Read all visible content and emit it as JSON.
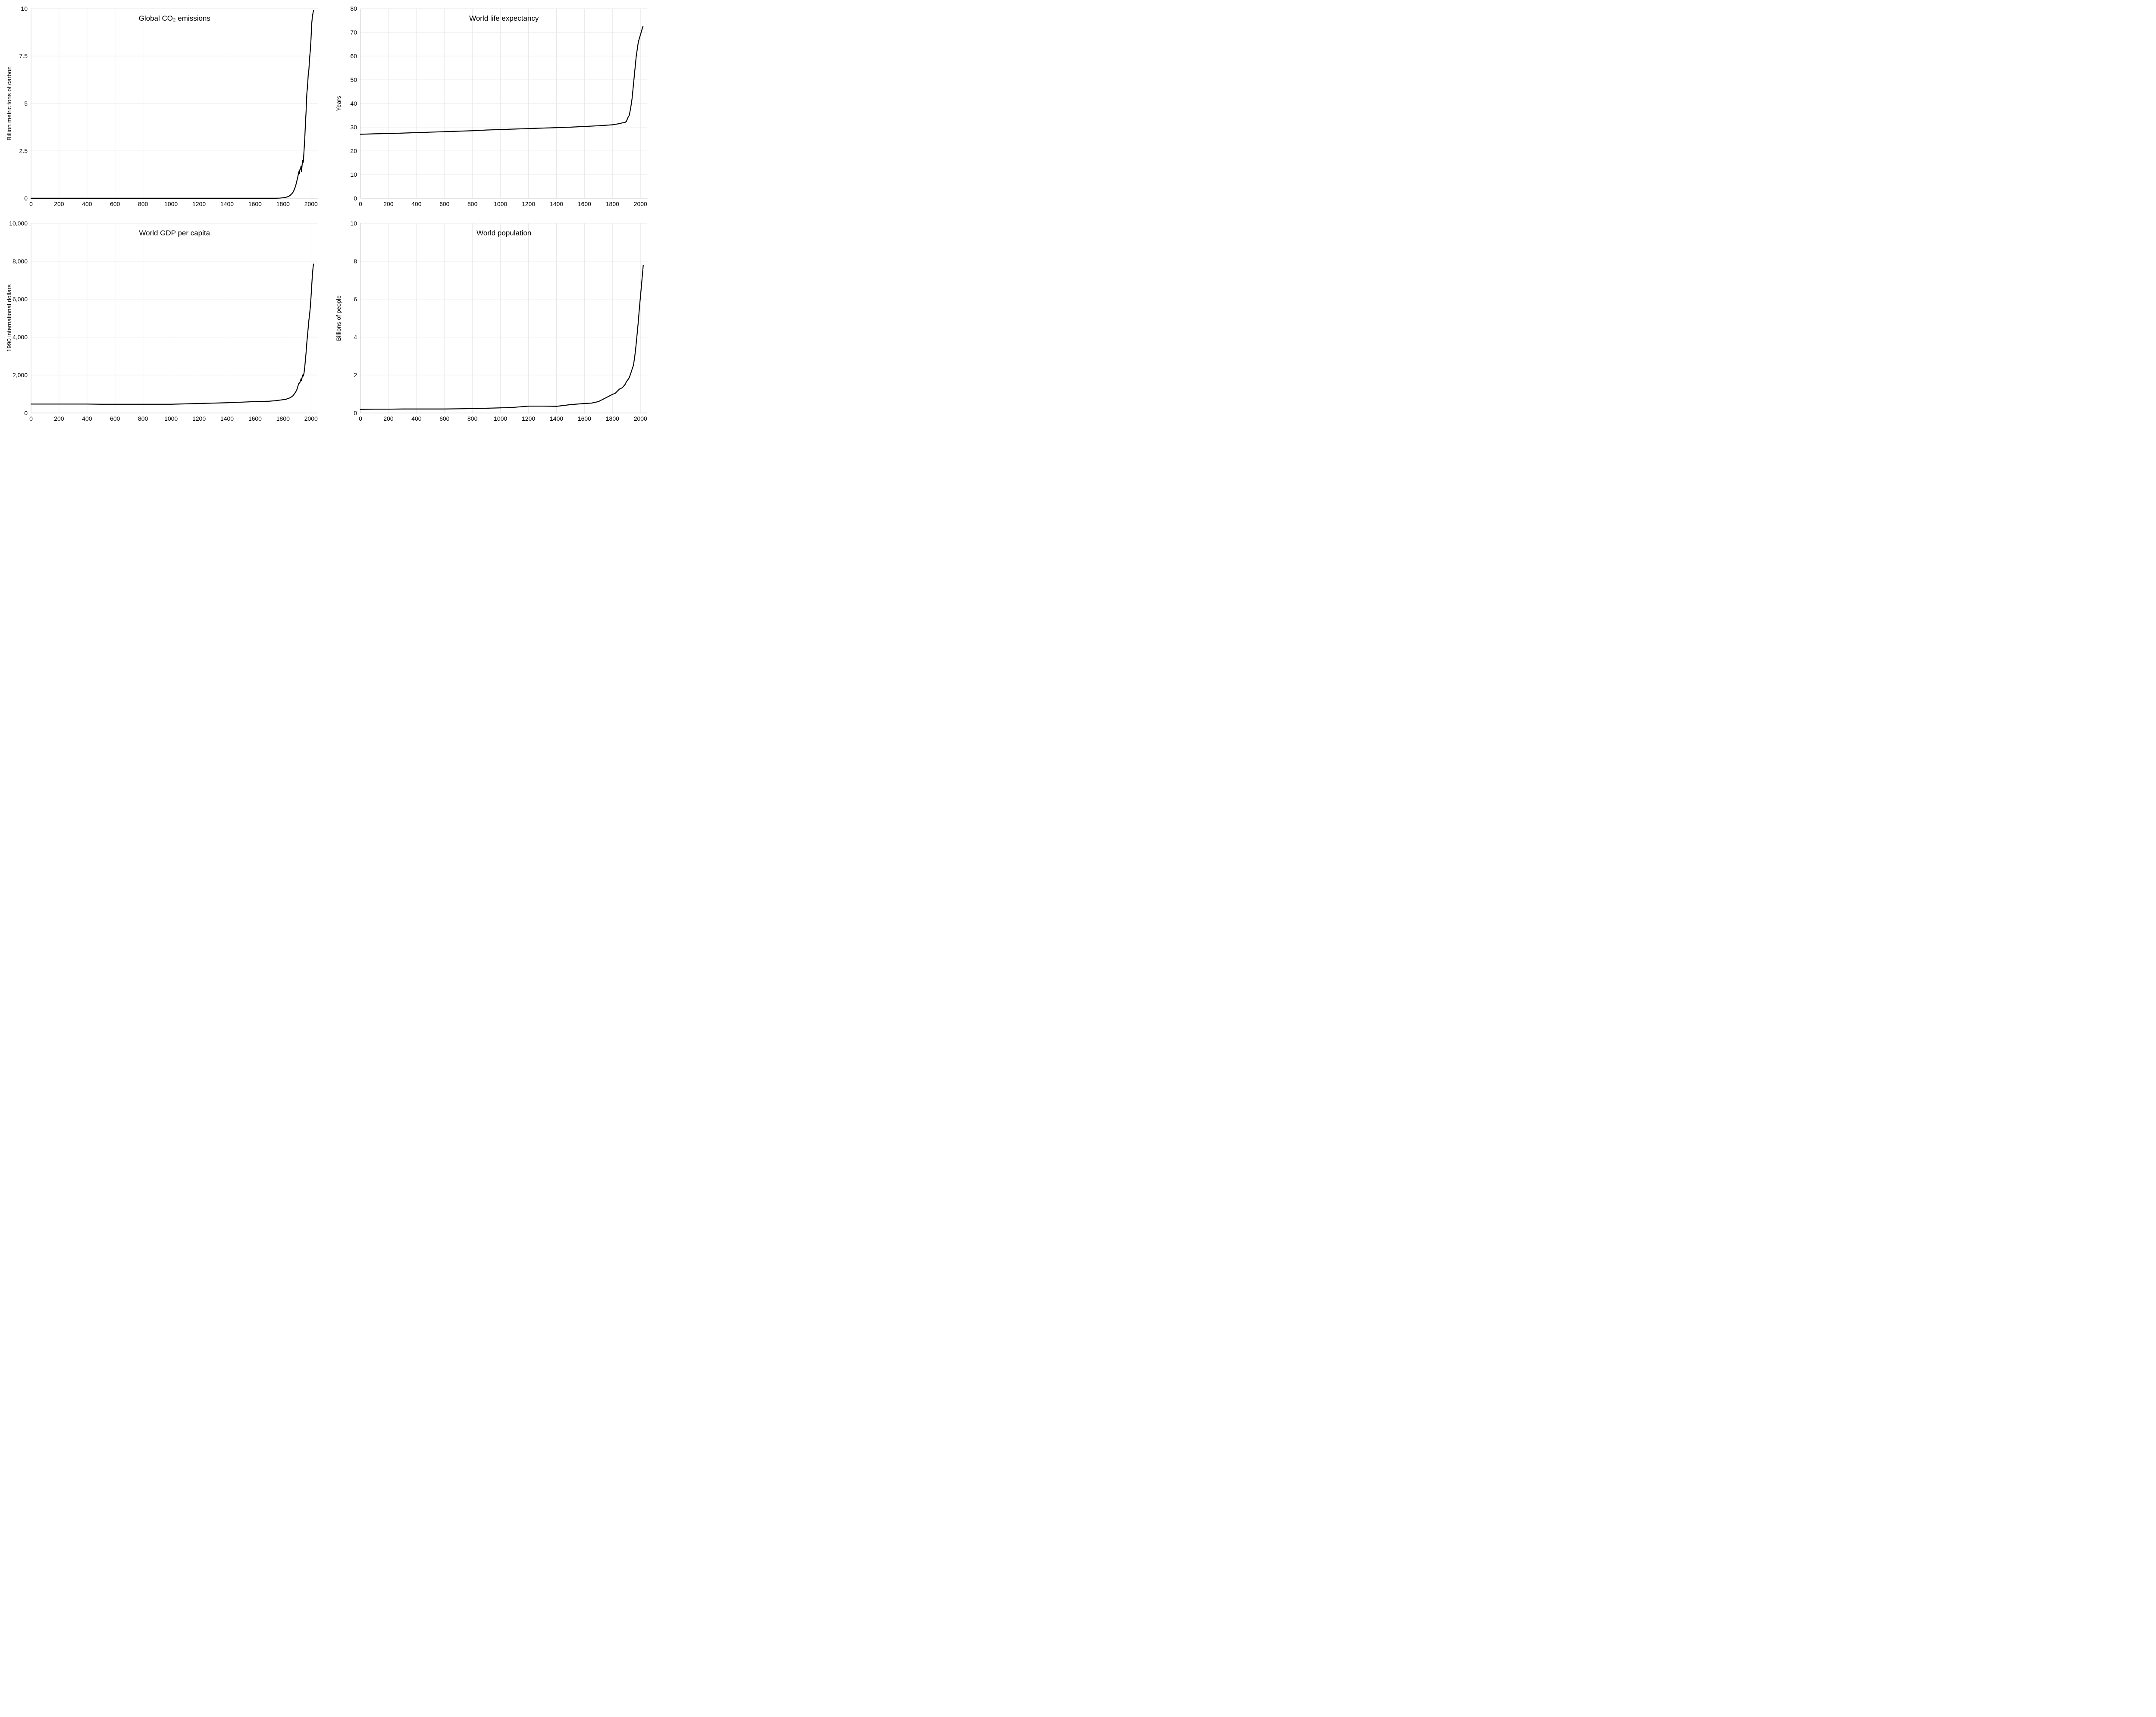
{
  "layout": {
    "rows": 2,
    "cols": 2,
    "background_color": "#ffffff",
    "grid_color": "#e8e8e8",
    "baseline_color": "#c8c8c8",
    "series_color": "#000000",
    "tick_fontsize": 14,
    "axis_label_fontsize": 14,
    "title_fontsize": 17,
    "series_stroke_width": 2.2
  },
  "panels": [
    {
      "id": "co2",
      "type": "line",
      "title": "Global CO₂ emissions",
      "ylabel": "Billion metric tons of carbon",
      "xlim": [
        0,
        2050
      ],
      "ylim": [
        0,
        10
      ],
      "xticks": [
        0,
        200,
        400,
        600,
        800,
        1000,
        1200,
        1400,
        1600,
        1800,
        2000
      ],
      "yticks": [
        0,
        2.5,
        5,
        7.5,
        10
      ],
      "ytick_labels": [
        "0",
        "2.5",
        "5",
        "7.5",
        "10"
      ],
      "series": [
        {
          "x": 0,
          "y": 0.003
        },
        {
          "x": 200,
          "y": 0.003
        },
        {
          "x": 400,
          "y": 0.003
        },
        {
          "x": 600,
          "y": 0.003
        },
        {
          "x": 800,
          "y": 0.003
        },
        {
          "x": 1000,
          "y": 0.003
        },
        {
          "x": 1200,
          "y": 0.003
        },
        {
          "x": 1400,
          "y": 0.003
        },
        {
          "x": 1500,
          "y": 0.003
        },
        {
          "x": 1600,
          "y": 0.003
        },
        {
          "x": 1700,
          "y": 0.003
        },
        {
          "x": 1750,
          "y": 0.003
        },
        {
          "x": 1780,
          "y": 0.01
        },
        {
          "x": 1800,
          "y": 0.03
        },
        {
          "x": 1820,
          "y": 0.05
        },
        {
          "x": 1840,
          "y": 0.1
        },
        {
          "x": 1850,
          "y": 0.15
        },
        {
          "x": 1860,
          "y": 0.22
        },
        {
          "x": 1870,
          "y": 0.3
        },
        {
          "x": 1880,
          "y": 0.45
        },
        {
          "x": 1890,
          "y": 0.65
        },
        {
          "x": 1895,
          "y": 0.8
        },
        {
          "x": 1900,
          "y": 0.95
        },
        {
          "x": 1905,
          "y": 1.1
        },
        {
          "x": 1910,
          "y": 1.3
        },
        {
          "x": 1913,
          "y": 1.4
        },
        {
          "x": 1915,
          "y": 1.3
        },
        {
          "x": 1918,
          "y": 1.35
        },
        {
          "x": 1920,
          "y": 1.5
        },
        {
          "x": 1925,
          "y": 1.55
        },
        {
          "x": 1929,
          "y": 1.7
        },
        {
          "x": 1932,
          "y": 1.4
        },
        {
          "x": 1937,
          "y": 1.8
        },
        {
          "x": 1940,
          "y": 2.0
        },
        {
          "x": 1945,
          "y": 1.9
        },
        {
          "x": 1950,
          "y": 2.5
        },
        {
          "x": 1955,
          "y": 3.1
        },
        {
          "x": 1960,
          "y": 3.9
        },
        {
          "x": 1965,
          "y": 4.6
        },
        {
          "x": 1970,
          "y": 5.5
        },
        {
          "x": 1975,
          "y": 5.9
        },
        {
          "x": 1980,
          "y": 6.5
        },
        {
          "x": 1985,
          "y": 6.8
        },
        {
          "x": 1990,
          "y": 7.4
        },
        {
          "x": 1995,
          "y": 7.8
        },
        {
          "x": 2000,
          "y": 8.4
        },
        {
          "x": 2005,
          "y": 9.2
        },
        {
          "x": 2010,
          "y": 9.6
        },
        {
          "x": 2015,
          "y": 9.8
        },
        {
          "x": 2018,
          "y": 9.9
        }
      ]
    },
    {
      "id": "life",
      "type": "line",
      "title": "World life expectancy",
      "ylabel": "Years",
      "xlim": [
        0,
        2050
      ],
      "ylim": [
        0,
        80
      ],
      "xticks": [
        0,
        200,
        400,
        600,
        800,
        1000,
        1200,
        1400,
        1600,
        1800,
        2000
      ],
      "yticks": [
        0,
        10,
        20,
        30,
        40,
        50,
        60,
        70,
        80
      ],
      "ytick_labels": [
        "0",
        "10",
        "20",
        "30",
        "40",
        "50",
        "60",
        "70",
        "80"
      ],
      "series": [
        {
          "x": 0,
          "y": 27
        },
        {
          "x": 100,
          "y": 27.2
        },
        {
          "x": 200,
          "y": 27.3
        },
        {
          "x": 300,
          "y": 27.5
        },
        {
          "x": 400,
          "y": 27.7
        },
        {
          "x": 500,
          "y": 27.9
        },
        {
          "x": 600,
          "y": 28.1
        },
        {
          "x": 700,
          "y": 28.3
        },
        {
          "x": 800,
          "y": 28.5
        },
        {
          "x": 900,
          "y": 28.8
        },
        {
          "x": 1000,
          "y": 29
        },
        {
          "x": 1100,
          "y": 29.2
        },
        {
          "x": 1200,
          "y": 29.4
        },
        {
          "x": 1300,
          "y": 29.6
        },
        {
          "x": 1400,
          "y": 29.8
        },
        {
          "x": 1500,
          "y": 30
        },
        {
          "x": 1600,
          "y": 30.3
        },
        {
          "x": 1700,
          "y": 30.6
        },
        {
          "x": 1750,
          "y": 30.8
        },
        {
          "x": 1800,
          "y": 31
        },
        {
          "x": 1820,
          "y": 31.2
        },
        {
          "x": 1850,
          "y": 31.5
        },
        {
          "x": 1870,
          "y": 31.8
        },
        {
          "x": 1890,
          "y": 32
        },
        {
          "x": 1900,
          "y": 32.5
        },
        {
          "x": 1910,
          "y": 34
        },
        {
          "x": 1920,
          "y": 35
        },
        {
          "x": 1930,
          "y": 38
        },
        {
          "x": 1940,
          "y": 42
        },
        {
          "x": 1950,
          "y": 48
        },
        {
          "x": 1955,
          "y": 51
        },
        {
          "x": 1960,
          "y": 54
        },
        {
          "x": 1965,
          "y": 57
        },
        {
          "x": 1970,
          "y": 60
        },
        {
          "x": 1975,
          "y": 62
        },
        {
          "x": 1980,
          "y": 64
        },
        {
          "x": 1985,
          "y": 66
        },
        {
          "x": 1990,
          "y": 67
        },
        {
          "x": 1995,
          "y": 68
        },
        {
          "x": 2000,
          "y": 69
        },
        {
          "x": 2005,
          "y": 70
        },
        {
          "x": 2010,
          "y": 71
        },
        {
          "x": 2015,
          "y": 72
        },
        {
          "x": 2018,
          "y": 72.5
        }
      ]
    },
    {
      "id": "gdp",
      "type": "line",
      "title": "World GDP per capita",
      "ylabel": "1990 international dollars",
      "xlim": [
        0,
        2050
      ],
      "ylim": [
        0,
        10000
      ],
      "xticks": [
        0,
        200,
        400,
        600,
        800,
        1000,
        1200,
        1400,
        1600,
        1800,
        2000
      ],
      "yticks": [
        0,
        2000,
        4000,
        6000,
        8000,
        10000
      ],
      "ytick_labels": [
        "0",
        "2,000",
        "4,000",
        "6,000",
        "8,000",
        "10,000"
      ],
      "series": [
        {
          "x": 0,
          "y": 470
        },
        {
          "x": 100,
          "y": 470
        },
        {
          "x": 200,
          "y": 470
        },
        {
          "x": 300,
          "y": 470
        },
        {
          "x": 400,
          "y": 470
        },
        {
          "x": 500,
          "y": 460
        },
        {
          "x": 600,
          "y": 460
        },
        {
          "x": 700,
          "y": 460
        },
        {
          "x": 800,
          "y": 460
        },
        {
          "x": 900,
          "y": 460
        },
        {
          "x": 1000,
          "y": 460
        },
        {
          "x": 1100,
          "y": 480
        },
        {
          "x": 1200,
          "y": 500
        },
        {
          "x": 1300,
          "y": 520
        },
        {
          "x": 1400,
          "y": 540
        },
        {
          "x": 1500,
          "y": 570
        },
        {
          "x": 1600,
          "y": 600
        },
        {
          "x": 1700,
          "y": 620
        },
        {
          "x": 1750,
          "y": 650
        },
        {
          "x": 1800,
          "y": 700
        },
        {
          "x": 1820,
          "y": 720
        },
        {
          "x": 1850,
          "y": 800
        },
        {
          "x": 1870,
          "y": 900
        },
        {
          "x": 1880,
          "y": 1000
        },
        {
          "x": 1890,
          "y": 1100
        },
        {
          "x": 1900,
          "y": 1250
        },
        {
          "x": 1910,
          "y": 1500
        },
        {
          "x": 1913,
          "y": 1550
        },
        {
          "x": 1920,
          "y": 1600
        },
        {
          "x": 1929,
          "y": 1800
        },
        {
          "x": 1932,
          "y": 1700
        },
        {
          "x": 1937,
          "y": 1900
        },
        {
          "x": 1940,
          "y": 2000
        },
        {
          "x": 1945,
          "y": 1950
        },
        {
          "x": 1950,
          "y": 2100
        },
        {
          "x": 1955,
          "y": 2400
        },
        {
          "x": 1960,
          "y": 2800
        },
        {
          "x": 1965,
          "y": 3200
        },
        {
          "x": 1970,
          "y": 3700
        },
        {
          "x": 1975,
          "y": 4100
        },
        {
          "x": 1980,
          "y": 4500
        },
        {
          "x": 1985,
          "y": 4900
        },
        {
          "x": 1990,
          "y": 5200
        },
        {
          "x": 1995,
          "y": 5600
        },
        {
          "x": 2000,
          "y": 6100
        },
        {
          "x": 2005,
          "y": 6700
        },
        {
          "x": 2010,
          "y": 7300
        },
        {
          "x": 2015,
          "y": 7700
        },
        {
          "x": 2018,
          "y": 7850
        }
      ]
    },
    {
      "id": "pop",
      "type": "line",
      "title": "World population",
      "ylabel": "Billions of people",
      "xlim": [
        0,
        2050
      ],
      "ylim": [
        0,
        10
      ],
      "xticks": [
        0,
        200,
        400,
        600,
        800,
        1000,
        1200,
        1400,
        1600,
        1800,
        2000
      ],
      "yticks": [
        0,
        2,
        4,
        6,
        8,
        10
      ],
      "ytick_labels": [
        "0",
        "2",
        "4",
        "6",
        "8",
        "10"
      ],
      "series": [
        {
          "x": 0,
          "y": 0.19
        },
        {
          "x": 100,
          "y": 0.2
        },
        {
          "x": 200,
          "y": 0.2
        },
        {
          "x": 300,
          "y": 0.21
        },
        {
          "x": 400,
          "y": 0.21
        },
        {
          "x": 500,
          "y": 0.21
        },
        {
          "x": 600,
          "y": 0.21
        },
        {
          "x": 700,
          "y": 0.22
        },
        {
          "x": 800,
          "y": 0.23
        },
        {
          "x": 900,
          "y": 0.25
        },
        {
          "x": 1000,
          "y": 0.27
        },
        {
          "x": 1100,
          "y": 0.3
        },
        {
          "x": 1200,
          "y": 0.36
        },
        {
          "x": 1300,
          "y": 0.36
        },
        {
          "x": 1400,
          "y": 0.35
        },
        {
          "x": 1500,
          "y": 0.44
        },
        {
          "x": 1600,
          "y": 0.5
        },
        {
          "x": 1650,
          "y": 0.52
        },
        {
          "x": 1700,
          "y": 0.6
        },
        {
          "x": 1750,
          "y": 0.79
        },
        {
          "x": 1800,
          "y": 0.98
        },
        {
          "x": 1820,
          "y": 1.04
        },
        {
          "x": 1850,
          "y": 1.26
        },
        {
          "x": 1870,
          "y": 1.33
        },
        {
          "x": 1890,
          "y": 1.5
        },
        {
          "x": 1900,
          "y": 1.65
        },
        {
          "x": 1910,
          "y": 1.75
        },
        {
          "x": 1920,
          "y": 1.86
        },
        {
          "x": 1930,
          "y": 2.07
        },
        {
          "x": 1940,
          "y": 2.3
        },
        {
          "x": 1950,
          "y": 2.52
        },
        {
          "x": 1955,
          "y": 2.76
        },
        {
          "x": 1960,
          "y": 3.02
        },
        {
          "x": 1965,
          "y": 3.33
        },
        {
          "x": 1970,
          "y": 3.69
        },
        {
          "x": 1975,
          "y": 4.07
        },
        {
          "x": 1980,
          "y": 4.44
        },
        {
          "x": 1985,
          "y": 4.85
        },
        {
          "x": 1990,
          "y": 5.31
        },
        {
          "x": 1995,
          "y": 5.74
        },
        {
          "x": 2000,
          "y": 6.14
        },
        {
          "x": 2005,
          "y": 6.54
        },
        {
          "x": 2010,
          "y": 6.96
        },
        {
          "x": 2015,
          "y": 7.38
        },
        {
          "x": 2020,
          "y": 7.79
        }
      ]
    }
  ]
}
